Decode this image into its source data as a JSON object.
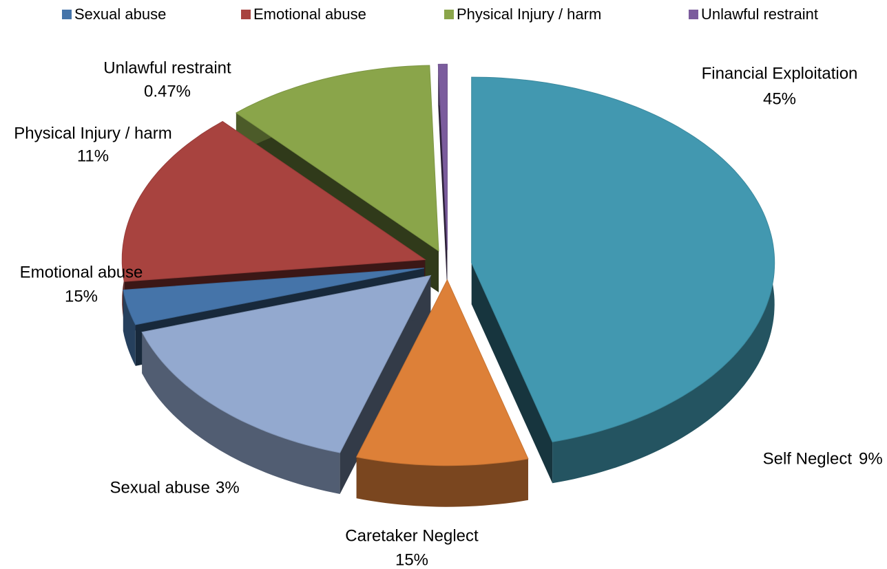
{
  "chart_data": {
    "type": "pie3d",
    "categories": [
      "Financial Exploitation",
      "Self Neglect",
      "Caretaker Neglect",
      "Sexual abuse",
      "Emotional abuse",
      "Physical Injury / harm",
      "Unlawful restraint"
    ],
    "values": [
      45,
      9,
      15,
      3,
      15,
      11,
      0.47
    ],
    "value_labels": [
      "45%",
      "9%",
      "15%",
      "3%",
      "15%",
      "11%",
      "0.47%"
    ],
    "colors": [
      "#4298b0",
      "#dd8038",
      "#93a9cf",
      "#4574a9",
      "#a8433f",
      "#8aa54a",
      "#7b5c9d"
    ],
    "legend": [
      "Sexual abuse",
      "Emotional abuse",
      "Physical Injury / harm",
      "Unlawful restraint"
    ],
    "legend_colors": [
      "#4574a9",
      "#a8433f",
      "#8aa54a",
      "#7b5c9d"
    ]
  }
}
